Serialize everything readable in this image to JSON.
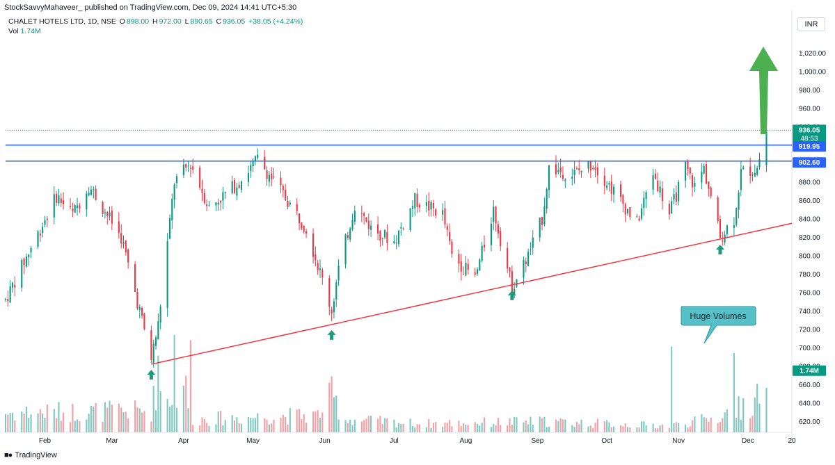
{
  "header": {
    "publisher": "StockSavvyMahaveer_ published on TradingView.com, Dec 09, 2024 14:41 UTC+5:30",
    "symbol": "CHALET HOTELS LTD, 1D, NSE",
    "o_label": "O",
    "o_value": "898.00",
    "h_label": "H",
    "h_value": "972.00",
    "l_label": "L",
    "l_value": "890.65",
    "c_label": "C",
    "c_value": "936.05",
    "change": "+38.05 (+4.24%)",
    "vol_label": "Vol",
    "vol_value": "1.74M",
    "currency": "INR"
  },
  "footer": {
    "brand": "TradingView"
  },
  "colors": {
    "up": "#089981",
    "down": "#f23645",
    "vol_up": "#7ecac1",
    "vol_down": "#f6a0a6",
    "level": "#2962ff",
    "trend": "#f23645",
    "arrow": "#1e9b7a",
    "big_arrow": "#4caf50",
    "callout_bg": "#56c0c8"
  },
  "chart_data": {
    "type": "candlestick",
    "title": "CHALET HOTELS LTD, 1D, NSE",
    "ylim": [
      608,
      1036
    ],
    "y_ticks": [
      "1,020.00",
      "1,000.00",
      "980.00",
      "960.00",
      "940.00",
      "920.00",
      "900.00",
      "880.00",
      "860.00",
      "840.00",
      "820.00",
      "800.00",
      "780.00",
      "760.00",
      "740.00",
      "720.00",
      "700.00",
      "680.00",
      "660.00",
      "640.00",
      "620.00"
    ],
    "y_tick_values": [
      1020,
      1000,
      980,
      960,
      940,
      920,
      900,
      880,
      860,
      840,
      820,
      800,
      780,
      760,
      740,
      720,
      700,
      680,
      660,
      640,
      620
    ],
    "x_ticks": [
      "Feb",
      "Mar",
      "Apr",
      "May",
      "Jun",
      "Jul",
      "Aug",
      "Sep",
      "Oct",
      "Nov",
      "Dec",
      "20"
    ],
    "price_labels": {
      "last": "936.05",
      "countdown": "48:53",
      "level_1": "919.95",
      "level_2": "902.60",
      "volume": "1.74M"
    },
    "horizontal_levels": [
      919.95,
      902.6
    ],
    "trendline": {
      "start": {
        "date": "2024-03-18",
        "price": 682
      },
      "end": {
        "date": "2024-12-20",
        "price": 835
      }
    },
    "support_arrows": [
      "2024-03-18",
      "2024-06-04",
      "2024-08-21",
      "2024-11-19"
    ],
    "annotation": "Huge Volumes",
    "pivots": [
      [
        "2024-01-15",
        752
      ],
      [
        "2024-02-06",
        865
      ],
      [
        "2024-02-13",
        845
      ],
      [
        "2024-02-20",
        876
      ],
      [
        "2024-03-05",
        820
      ],
      [
        "2024-03-13",
        740
      ],
      [
        "2024-03-18",
        688
      ],
      [
        "2024-03-21",
        725
      ],
      [
        "2024-03-28",
        880
      ],
      [
        "2024-04-04",
        900
      ],
      [
        "2024-04-12",
        852
      ],
      [
        "2024-04-25",
        880
      ],
      [
        "2024-05-03",
        905
      ],
      [
        "2024-05-13",
        870
      ],
      [
        "2024-05-24",
        830
      ],
      [
        "2024-05-29",
        790
      ],
      [
        "2024-06-04",
        740
      ],
      [
        "2024-06-07",
        785
      ],
      [
        "2024-06-14",
        855
      ],
      [
        "2024-06-21",
        830
      ],
      [
        "2024-07-01",
        815
      ],
      [
        "2024-07-10",
        860
      ],
      [
        "2024-07-22",
        845
      ],
      [
        "2024-07-26",
        800
      ],
      [
        "2024-08-05",
        775
      ],
      [
        "2024-08-13",
        850
      ],
      [
        "2024-08-21",
        765
      ],
      [
        "2024-08-28",
        800
      ],
      [
        "2024-09-03",
        840
      ],
      [
        "2024-09-06",
        895
      ],
      [
        "2024-09-16",
        888
      ],
      [
        "2024-09-25",
        900
      ],
      [
        "2024-10-04",
        870
      ],
      [
        "2024-10-14",
        835
      ],
      [
        "2024-10-21",
        890
      ],
      [
        "2024-10-28",
        845
      ],
      [
        "2024-11-04",
        895
      ],
      [
        "2024-11-08",
        875
      ],
      [
        "2024-11-12",
        895
      ],
      [
        "2024-11-19",
        820
      ],
      [
        "2024-11-25",
        840
      ],
      [
        "2024-11-28",
        890
      ],
      [
        "2024-12-05",
        895
      ],
      [
        "2024-12-09",
        936
      ]
    ],
    "volume_pivots": [
      [
        "2024-01-15",
        0.9
      ],
      [
        "2024-03-18",
        1.0
      ],
      [
        "2024-03-20",
        2.0
      ],
      [
        "2024-03-28",
        1.6
      ],
      [
        "2024-04-01",
        2.6
      ],
      [
        "2024-04-04",
        0.6
      ],
      [
        "2024-05-29",
        0.8
      ],
      [
        "2024-06-04",
        1.7
      ],
      [
        "2024-06-10",
        0.6
      ],
      [
        "2024-07-12",
        0.4
      ],
      [
        "2024-09-03",
        0.5
      ],
      [
        "2024-10-28",
        0.3
      ],
      [
        "2024-11-19",
        0.7
      ],
      [
        "2024-12-09",
        1.74
      ]
    ],
    "volume_spikes": [
      [
        "2024-03-21",
        3.0
      ],
      [
        "2024-03-28",
        3.8
      ],
      [
        "2024-04-04",
        3.6
      ],
      [
        "2024-10-29",
        3.35
      ],
      [
        "2024-11-25",
        3.1
      ],
      [
        "2024-12-09",
        1.74
      ]
    ],
    "last_candle": {
      "date": "2024-12-09",
      "open": 898.0,
      "high": 972.0,
      "low": 890.65,
      "close": 936.05,
      "volume_m": 1.74
    }
  }
}
